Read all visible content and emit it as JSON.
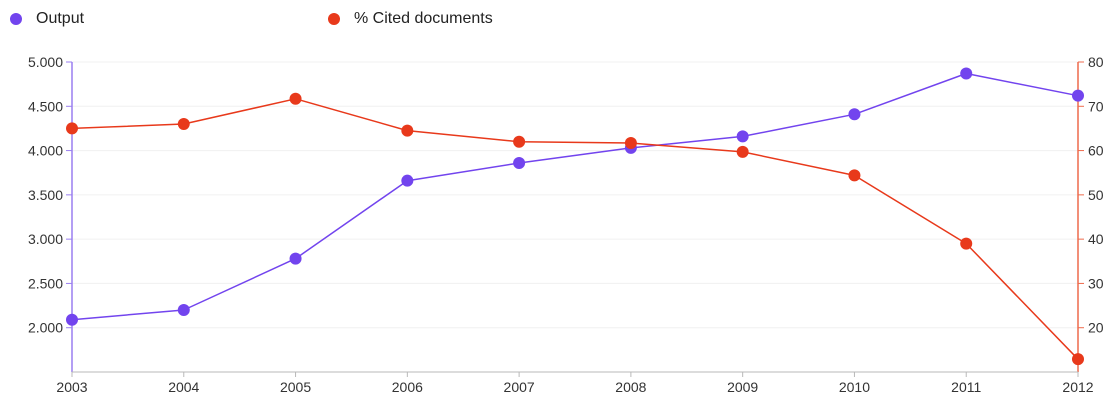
{
  "legend": {
    "output_label": "Output",
    "cited_label": "% Cited documents"
  },
  "colors": {
    "output": "#7244ee",
    "cited": "#e8391b",
    "grid": "#f0f0f0",
    "axis_left": "#9a7ff0",
    "axis_right": "#ee6a4c"
  },
  "chart_data": {
    "type": "line",
    "title": "",
    "x": [
      "2003",
      "2004",
      "2005",
      "2006",
      "2007",
      "2008",
      "2009",
      "2010",
      "2011",
      "2012"
    ],
    "series": [
      {
        "name": "Output",
        "axis": "left",
        "values": [
          2090,
          2200,
          2780,
          3660,
          3860,
          4030,
          4160,
          4410,
          4870,
          4620
        ]
      },
      {
        "name": "% Cited documents",
        "axis": "right",
        "values": [
          65,
          66,
          71.7,
          64.5,
          62,
          61.7,
          59.7,
          54.4,
          39,
          12.9
        ]
      }
    ],
    "y_left": {
      "range": [
        1500,
        5000
      ],
      "ticks": [
        2000,
        2500,
        3000,
        3500,
        4000,
        4500,
        5000
      ],
      "tick_labels": [
        "2.000",
        "2.500",
        "3.000",
        "3.500",
        "4.000",
        "4.500",
        "5.000"
      ]
    },
    "y_right": {
      "range": [
        10,
        80
      ],
      "ticks": [
        20,
        30,
        40,
        50,
        60,
        70,
        80
      ],
      "tick_labels": [
        "20",
        "30",
        "40",
        "50",
        "60",
        "70",
        "80"
      ]
    },
    "grid": true,
    "legend_position": "top-left"
  }
}
